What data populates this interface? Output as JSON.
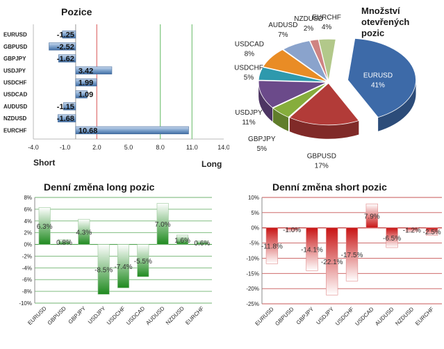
{
  "chart_data": [
    {
      "id": "positions",
      "type": "bar",
      "orientation": "horizontal",
      "title": "Pozice",
      "xlabel_left": "Short",
      "xlabel_right": "Long",
      "categories": [
        "EURUSD",
        "GBPUSD",
        "GBPJPY",
        "USDJPY",
        "USDCHF",
        "USDCAD",
        "AUDUSD",
        "NZDUSD",
        "EURCHF"
      ],
      "values": [
        -1.25,
        -2.52,
        -1.62,
        3.42,
        1.99,
        1.09,
        -1.15,
        -1.68,
        10.68
      ],
      "value_labels": [
        "-1.25",
        "-2.52",
        "-1.62",
        "3.42",
        "1.99",
        "1.09",
        "-1.15",
        "-1.68",
        "10.68"
      ],
      "xlim": [
        -4.0,
        14.0
      ],
      "xticks": [
        -4.0,
        -1.0,
        2.0,
        5.0,
        8.0,
        11.0,
        14.0
      ],
      "xtick_labels": [
        "-4.0",
        "-1.0",
        "2.0",
        "5.0",
        "8.0",
        "11.0",
        "14.0"
      ],
      "ref_lines": [
        {
          "value": 2.0,
          "color": "#e07070"
        },
        {
          "value": 8.0,
          "color": "#7cc47c"
        },
        {
          "value": 11.0,
          "color": "#7cc47c"
        }
      ],
      "bar_color": "#7fa3cc"
    },
    {
      "id": "open_positions",
      "type": "pie",
      "title_lines": [
        "Množství",
        "otevřených",
        "pozic"
      ],
      "slices": [
        {
          "label": "EURUSD",
          "value": 41,
          "pct": "41%",
          "color": "#3d6aa8"
        },
        {
          "label": "GBPUSD",
          "value": 17,
          "pct": "17%",
          "color": "#b23b38"
        },
        {
          "label": "GBPJPY",
          "value": 5,
          "pct": "5%",
          "color": "#86ad3c"
        },
        {
          "label": "USDJPY",
          "value": 11,
          "pct": "11%",
          "color": "#6b4a8a"
        },
        {
          "label": "USDCHF",
          "value": 5,
          "pct": "5%",
          "color": "#2e99ad"
        },
        {
          "label": "USDCAD",
          "value": 8,
          "pct": "8%",
          "color": "#e98c25"
        },
        {
          "label": "AUDUSD",
          "value": 7,
          "pct": "7%",
          "color": "#8aa3cc"
        },
        {
          "label": "NZDUSD",
          "value": 2,
          "pct": "2%",
          "color": "#cf8482"
        },
        {
          "label": "EURCHF",
          "value": 4,
          "pct": "4%",
          "color": "#b2c88a"
        }
      ]
    },
    {
      "id": "long_change",
      "type": "bar",
      "title": "Denní změna long pozic",
      "categories": [
        "EURUSD",
        "GBPUSD",
        "GBPJPY",
        "USDJPY",
        "USDCHF",
        "USDCAD",
        "AUDUSD",
        "NZDUSD",
        "EURCHF"
      ],
      "values": [
        6.3,
        0.8,
        4.3,
        -8.5,
        -7.4,
        -5.5,
        7.0,
        1.6,
        0.6
      ],
      "value_labels": [
        "6.3%",
        "0.8%",
        "4.3%",
        "-8.5%",
        "-7.4%",
        "-5.5%",
        "7.0%",
        "1.6%",
        "0.6%"
      ],
      "ylim": [
        -10,
        8
      ],
      "yticks": [
        8,
        6,
        4,
        2,
        0,
        -2,
        -4,
        -6,
        -8,
        -10
      ],
      "ytick_labels": [
        "8%",
        "6%",
        "4%",
        "2%",
        "0%",
        "-2%",
        "-4%",
        "-6%",
        "-8%",
        "-10%"
      ],
      "bar_color": "#2e8b2e",
      "grid_color": "#3f9a3f"
    },
    {
      "id": "short_change",
      "type": "bar",
      "title": "Denní změna short pozic",
      "categories": [
        "EURUSD",
        "GBPUSD",
        "GBPJPY",
        "USDJPY",
        "USDCHF",
        "USDCAD",
        "AUDUSD",
        "NZDUSD",
        "EURCHF"
      ],
      "values": [
        -11.8,
        -1.0,
        -14.1,
        -22.1,
        -17.5,
        7.9,
        -6.5,
        -1.2,
        -2.5
      ],
      "value_labels": [
        "-11.8%",
        "-1.0%",
        "-14.1%",
        "-22.1%",
        "-17.5%",
        "7.9%",
        "-6.5%",
        "-1.2%",
        "-2.5%"
      ],
      "ylim": [
        -25,
        10
      ],
      "yticks": [
        10,
        5,
        0,
        -5,
        -10,
        -15,
        -20,
        -25
      ],
      "ytick_labels": [
        "10%",
        "5%",
        "0%",
        "-5%",
        "-10%",
        "-15%",
        "-20%",
        "-25%"
      ],
      "bar_color": "#c81414",
      "grid_color": "#b51d1d"
    }
  ]
}
